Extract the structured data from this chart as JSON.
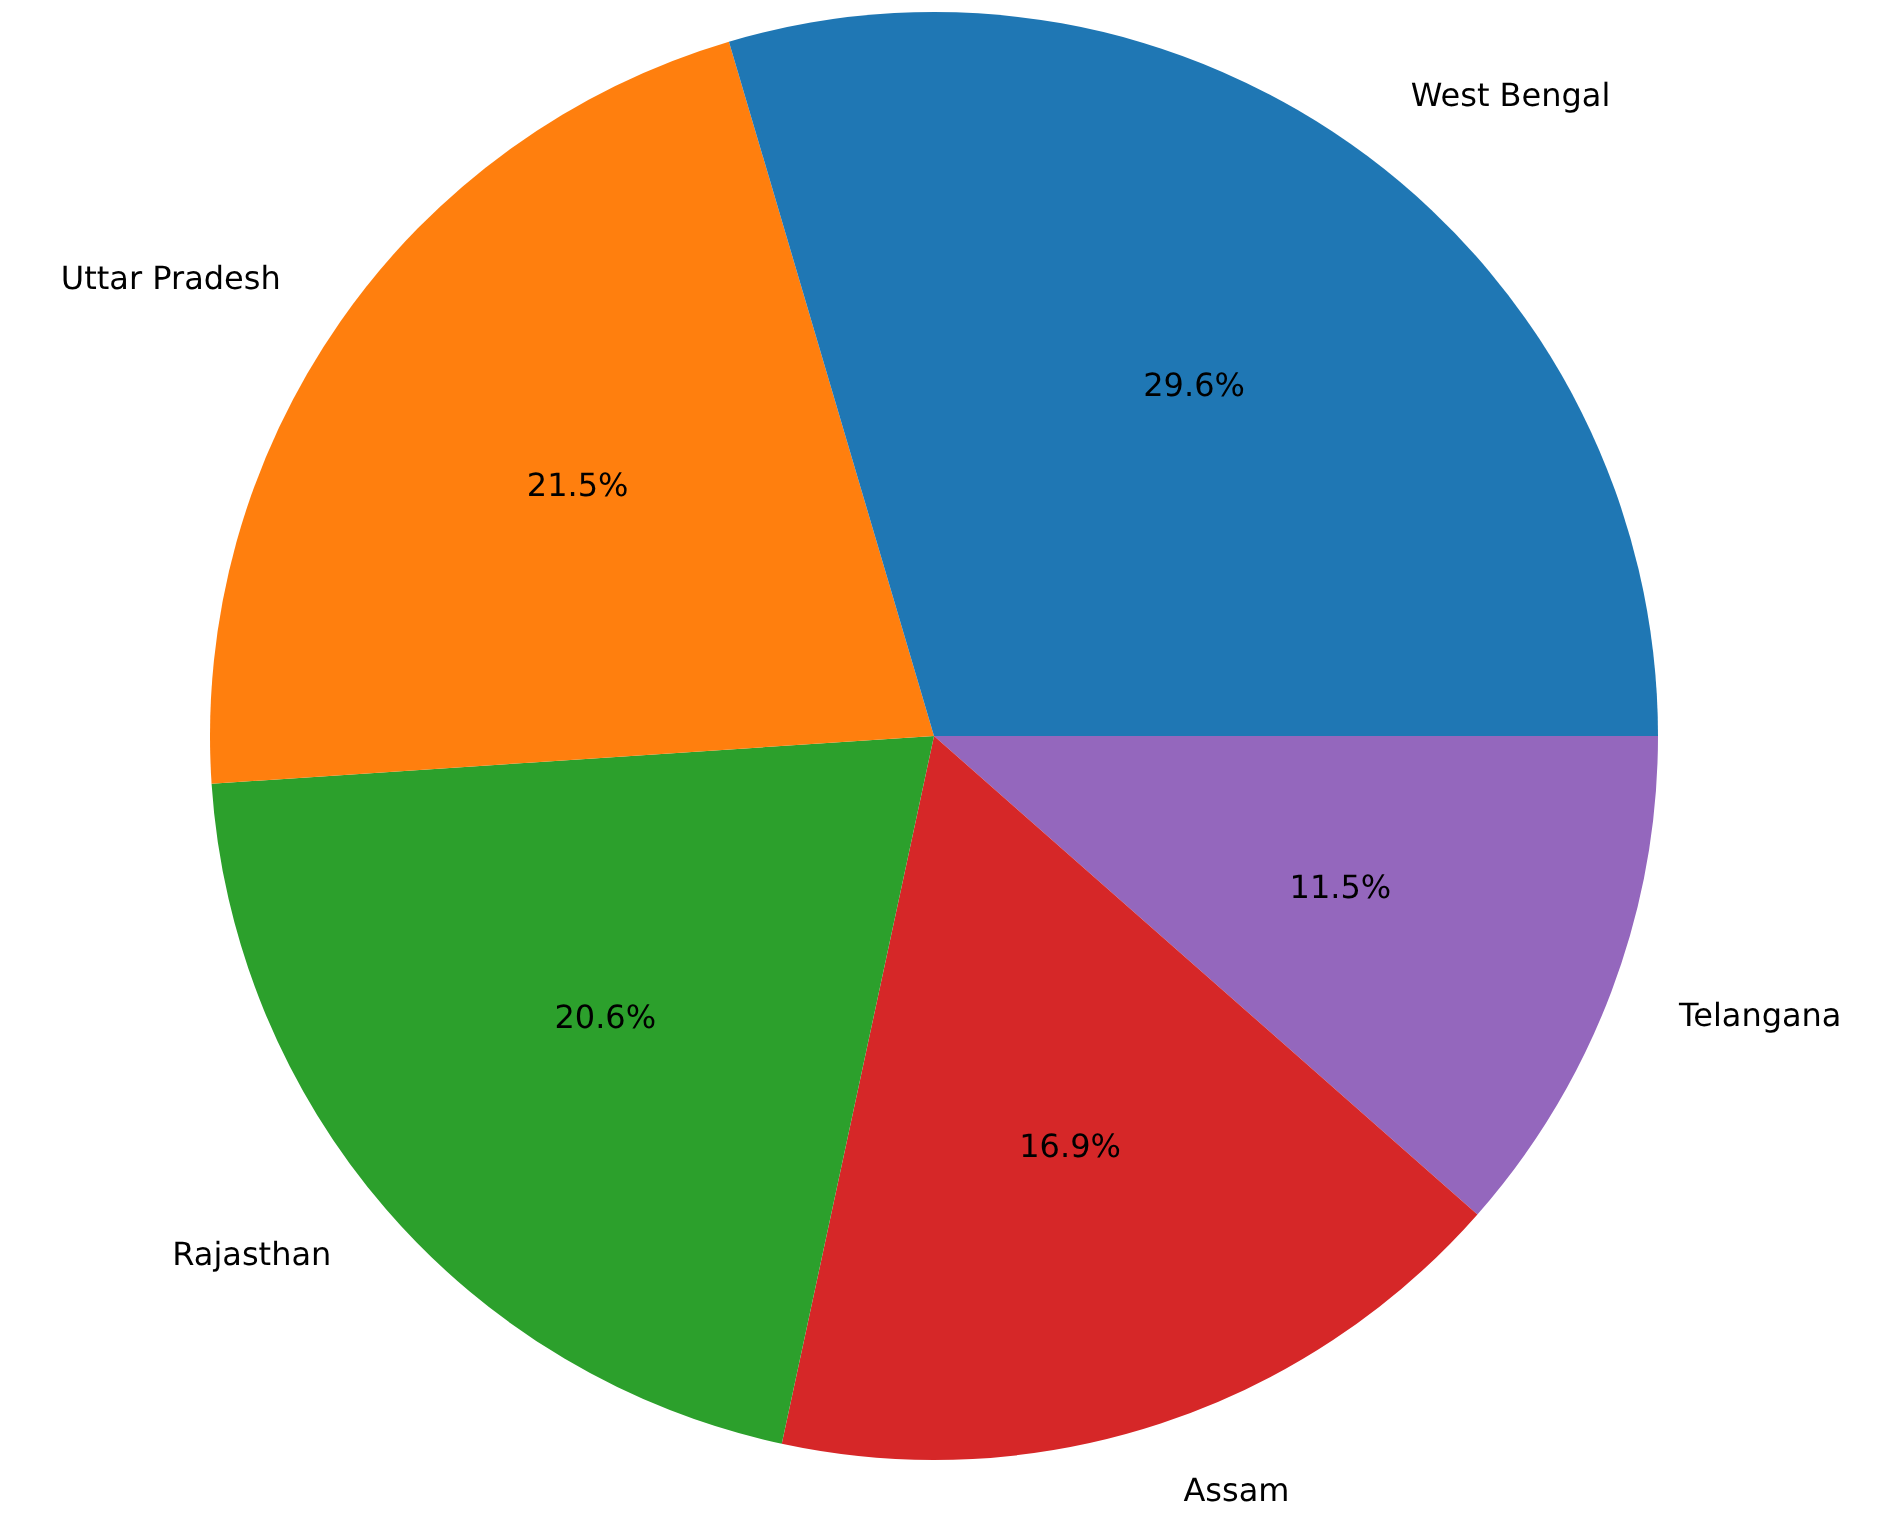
{
  "chart_data": {
    "type": "pie",
    "categories": [
      "West Bengal",
      "Uttar Pradesh",
      "Rajasthan",
      "Assam",
      "Telangana"
    ],
    "values": [
      29.6,
      21.5,
      20.6,
      16.9,
      11.5
    ],
    "value_labels": [
      "29.6%",
      "21.5%",
      "20.6%",
      "16.9%",
      "11.5%"
    ],
    "colors": [
      "#1f77b4",
      "#ff7f0e",
      "#2ca02c",
      "#d62728",
      "#9467bd"
    ],
    "legend": false
  }
}
